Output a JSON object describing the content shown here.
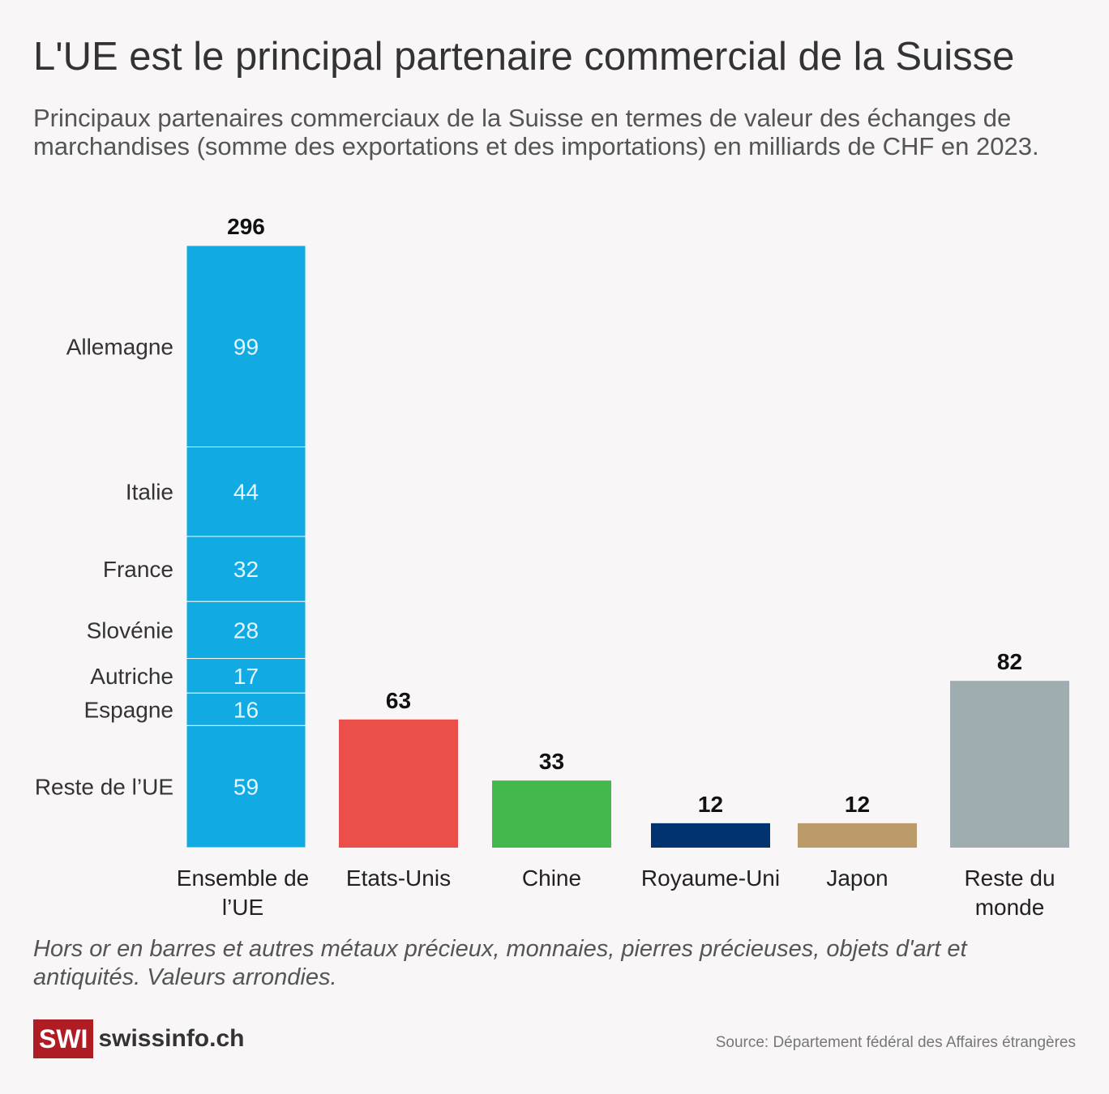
{
  "title": "L'UE est le principal partenaire commercial de la Suisse",
  "subtitle": "Principaux partenaires commerciaux de la Suisse en termes de valeur des échanges de marchandises (somme des exportations et des importations) en milliards de CHF en 2023.",
  "note": "Hors or en barres et autres métaux précieux, monnaies, pierres précieuses, objets d'art et antiquités. Valeurs arrondies.",
  "logo": {
    "badge": "SWI",
    "brand": "swissinfo.ch"
  },
  "source": "Source: Département fédéral des Affaires étrangères",
  "chart_data": {
    "type": "bar",
    "title": "L'UE est le principal partenaire commercial de la Suisse",
    "ylim": [
      0,
      296
    ],
    "categories": [
      [
        "Ensemble de",
        "l’UE"
      ],
      [
        "Etats-Unis"
      ],
      [
        "Chine"
      ],
      [
        "Royaume-Uni"
      ],
      [
        "Japon"
      ],
      [
        "Reste du",
        "monde"
      ]
    ],
    "values": [
      296,
      63,
      33,
      12,
      12,
      82
    ],
    "colors": [
      "#11aae2",
      "#eb4f4a",
      "#43b84d",
      "#003370",
      "#bc9b6a",
      "#9fadb0"
    ],
    "eu_breakdown": [
      {
        "name": "Allemagne",
        "value": 99
      },
      {
        "name": "Italie",
        "value": 44
      },
      {
        "name": "France",
        "value": 32
      },
      {
        "name": "Slovénie",
        "value": 28
      },
      {
        "name": "Autriche",
        "value": 17
      },
      {
        "name": "Espagne",
        "value": 16
      },
      {
        "name": "Reste de l’UE",
        "value": 59
      }
    ]
  }
}
